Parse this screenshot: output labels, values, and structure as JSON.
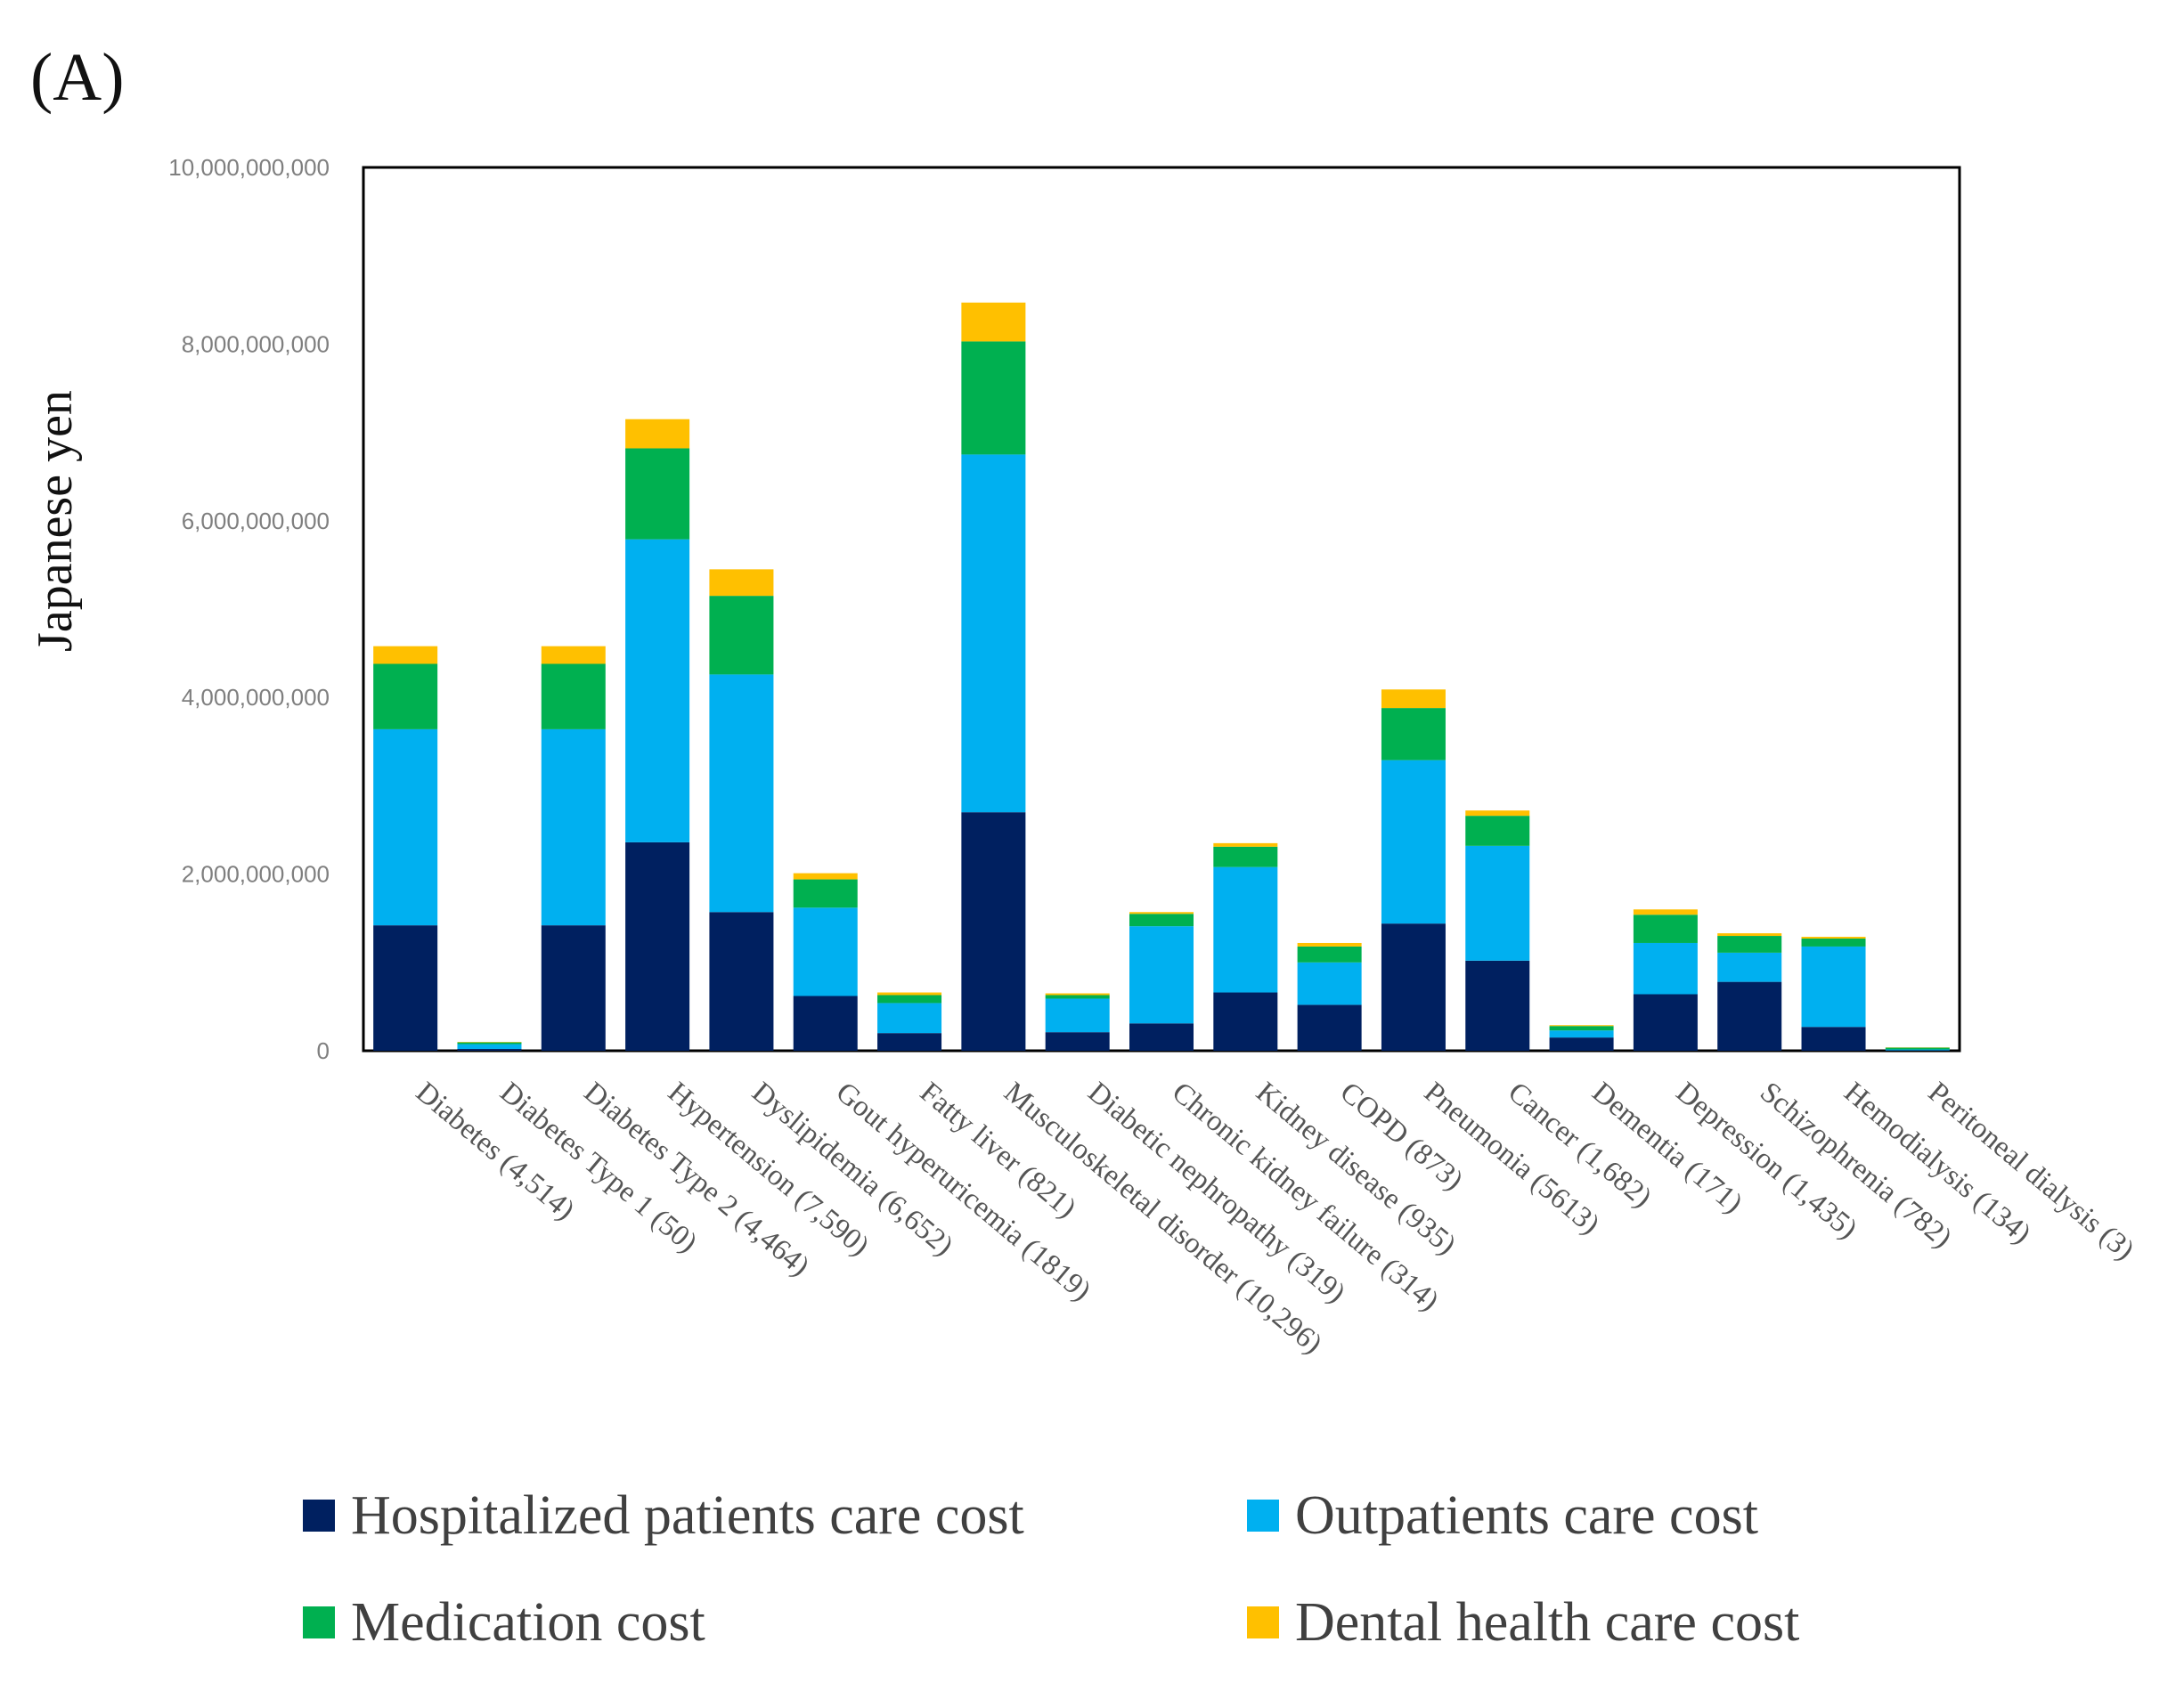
{
  "panel_label": "(A)",
  "chart_data": {
    "type": "bar",
    "stacked": true,
    "title": "",
    "xlabel": "",
    "ylabel": "Japanese yen",
    "ylim": [
      0,
      10000000000
    ],
    "yticks": [
      0,
      2000000000,
      4000000000,
      6000000000,
      8000000000,
      10000000000
    ],
    "ytick_labels": [
      "0",
      "2,000,000,000",
      "4,000,000,000",
      "6,000,000,000",
      "8,000,000,000",
      "10,000,000,000"
    ],
    "grid": false,
    "legend_position": "bottom",
    "categories": [
      "Diabetes (4,514)",
      "Diabetes Type 1 (50)",
      "Diabetes Type 2 (4,464)",
      "Hypertension (7,590)",
      "Dyslipidemia (6,652)",
      "Gout hyperuricemia (1819)",
      "Fatty liver (821)",
      "Musculoskeletal disorder (10,296)",
      "Diabetic nephropathy (319)",
      "Chronic kidney failure (314)",
      "Kidney disease (935)",
      "COPD (873)",
      "Pneumonia (5613)",
      "Cancer (1,682)",
      "Dementia (171)",
      "Depression (1,435)",
      "Schizophrenia (782)",
      "Hemodialysis (134)",
      "Peritoneal dialysis (3)"
    ],
    "series": [
      {
        "name": "Hospitalized patients care cost",
        "color": "#002060",
        "values": [
          1420000000,
          20000000,
          1420000000,
          2360000000,
          1570000000,
          620000000,
          200000000,
          2700000000,
          210000000,
          310000000,
          660000000,
          520000000,
          1440000000,
          1020000000,
          150000000,
          640000000,
          780000000,
          270000000,
          5000000
        ]
      },
      {
        "name": "Outpatients care cost",
        "color": "#00B0F0",
        "values": [
          2220000000,
          55000000,
          2220000000,
          3430000000,
          2690000000,
          1000000000,
          340000000,
          4050000000,
          380000000,
          1100000000,
          1420000000,
          480000000,
          1850000000,
          1300000000,
          80000000,
          580000000,
          330000000,
          910000000,
          10000000
        ]
      },
      {
        "name": "Medication cost",
        "color": "#00B050",
        "values": [
          740000000,
          20000000,
          740000000,
          1030000000,
          890000000,
          320000000,
          90000000,
          1280000000,
          40000000,
          140000000,
          230000000,
          180000000,
          590000000,
          340000000,
          50000000,
          320000000,
          190000000,
          90000000,
          20000000
        ]
      },
      {
        "name": "Dental health care cost",
        "color": "#FFC000",
        "values": [
          200000000,
          5000000,
          200000000,
          330000000,
          300000000,
          70000000,
          30000000,
          440000000,
          20000000,
          20000000,
          40000000,
          40000000,
          210000000,
          60000000,
          10000000,
          60000000,
          30000000,
          20000000,
          3000000
        ]
      }
    ]
  }
}
